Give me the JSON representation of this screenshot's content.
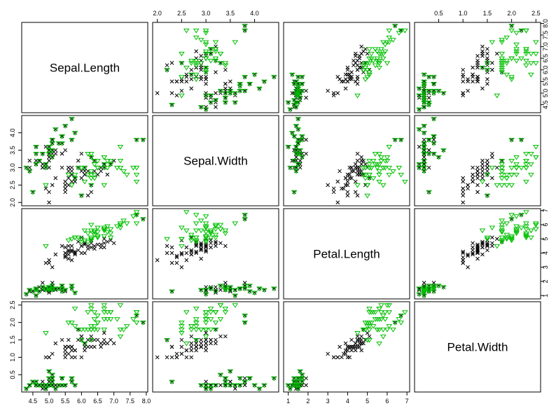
{
  "chart_data": {
    "type": "scatter",
    "title": "",
    "variables": [
      "Sepal.Length",
      "Sepal.Width",
      "Petal.Length",
      "Petal.Width"
    ],
    "ticks": {
      "Sepal.Length": [
        4.5,
        5.0,
        5.5,
        6.0,
        6.5,
        7.0,
        7.5,
        8.0
      ],
      "Sepal.Width": [
        2.0,
        2.5,
        3.0,
        3.5,
        4.0
      ],
      "Petal.Length": [
        1,
        2,
        3,
        4,
        5,
        6,
        7
      ],
      "Petal.Width": [
        0.5,
        1.0,
        1.5,
        2.0,
        2.5
      ]
    },
    "tick_labels": {
      "Sepal.Length": [
        "4.5",
        "5.0",
        "5.5",
        "6.0",
        "6.5",
        "7.0",
        "7.5",
        "8.0"
      ],
      "Sepal.Width": [
        "2.0",
        "2.5",
        "3.0",
        "3.5",
        "4.0"
      ],
      "Petal.Length": [
        "1",
        "2",
        "3",
        "4",
        "5",
        "6",
        "7"
      ],
      "Petal.Width": [
        "0.5",
        "1.0",
        "1.5",
        "2.0",
        "2.5"
      ]
    },
    "ranges": {
      "Sepal.Length": [
        4.3,
        7.9
      ],
      "Sepal.Width": [
        2.0,
        4.4
      ],
      "Petal.Length": [
        1.0,
        6.9
      ],
      "Petal.Width": [
        0.1,
        2.5
      ]
    },
    "series": [
      {
        "marker": "x",
        "color": "#000000",
        "points": [
          [
            5.1,
            3.5,
            1.4,
            0.2
          ],
          [
            4.9,
            3.0,
            1.4,
            0.2
          ],
          [
            4.7,
            3.2,
            1.3,
            0.2
          ],
          [
            4.6,
            3.1,
            1.5,
            0.2
          ],
          [
            5.0,
            3.6,
            1.4,
            0.2
          ],
          [
            5.4,
            3.9,
            1.7,
            0.4
          ],
          [
            4.6,
            3.4,
            1.4,
            0.3
          ],
          [
            5.0,
            3.4,
            1.5,
            0.2
          ],
          [
            4.4,
            2.9,
            1.4,
            0.2
          ],
          [
            4.9,
            3.1,
            1.5,
            0.1
          ],
          [
            5.4,
            3.7,
            1.5,
            0.2
          ],
          [
            4.8,
            3.4,
            1.6,
            0.2
          ],
          [
            4.8,
            3.0,
            1.4,
            0.1
          ],
          [
            4.3,
            3.0,
            1.1,
            0.1
          ],
          [
            5.8,
            4.0,
            1.2,
            0.2
          ],
          [
            5.7,
            4.4,
            1.5,
            0.4
          ],
          [
            5.4,
            3.9,
            1.3,
            0.4
          ],
          [
            5.1,
            3.5,
            1.4,
            0.3
          ],
          [
            5.7,
            3.8,
            1.7,
            0.3
          ],
          [
            5.1,
            3.8,
            1.5,
            0.3
          ],
          [
            5.4,
            3.4,
            1.7,
            0.2
          ],
          [
            5.1,
            3.7,
            1.5,
            0.4
          ],
          [
            4.6,
            3.6,
            1.0,
            0.2
          ],
          [
            5.1,
            3.3,
            1.7,
            0.5
          ],
          [
            4.8,
            3.4,
            1.9,
            0.2
          ],
          [
            5.0,
            3.0,
            1.6,
            0.2
          ],
          [
            5.0,
            3.4,
            1.6,
            0.4
          ],
          [
            5.2,
            3.5,
            1.5,
            0.2
          ],
          [
            5.2,
            3.4,
            1.4,
            0.2
          ],
          [
            4.7,
            3.2,
            1.6,
            0.2
          ],
          [
            4.8,
            3.1,
            1.6,
            0.2
          ],
          [
            5.4,
            3.4,
            1.5,
            0.4
          ],
          [
            5.2,
            4.1,
            1.5,
            0.1
          ],
          [
            5.5,
            4.2,
            1.4,
            0.2
          ],
          [
            4.9,
            3.1,
            1.5,
            0.2
          ],
          [
            5.0,
            3.2,
            1.2,
            0.2
          ],
          [
            5.5,
            3.5,
            1.3,
            0.2
          ],
          [
            4.9,
            3.6,
            1.4,
            0.1
          ],
          [
            4.4,
            3.0,
            1.3,
            0.2
          ],
          [
            5.1,
            3.4,
            1.5,
            0.2
          ],
          [
            5.0,
            3.5,
            1.3,
            0.3
          ],
          [
            4.5,
            2.3,
            1.3,
            0.3
          ],
          [
            4.4,
            3.2,
            1.3,
            0.2
          ],
          [
            5.0,
            3.5,
            1.6,
            0.6
          ],
          [
            5.1,
            3.8,
            1.9,
            0.4
          ],
          [
            4.8,
            3.0,
            1.4,
            0.3
          ],
          [
            5.1,
            3.8,
            1.6,
            0.2
          ],
          [
            4.6,
            3.2,
            1.4,
            0.2
          ],
          [
            5.3,
            3.7,
            1.5,
            0.2
          ],
          [
            5.0,
            3.3,
            1.4,
            0.2
          ],
          [
            7.0,
            3.2,
            4.7,
            1.4
          ],
          [
            6.4,
            3.2,
            4.5,
            1.5
          ],
          [
            6.9,
            3.1,
            4.9,
            1.5
          ],
          [
            5.5,
            2.3,
            4.0,
            1.3
          ],
          [
            6.5,
            2.8,
            4.6,
            1.5
          ],
          [
            5.7,
            2.8,
            4.5,
            1.3
          ],
          [
            6.3,
            3.3,
            4.7,
            1.6
          ],
          [
            4.9,
            2.4,
            3.3,
            1.0
          ],
          [
            6.6,
            2.9,
            4.6,
            1.3
          ],
          [
            5.2,
            2.7,
            3.9,
            1.4
          ],
          [
            5.0,
            2.0,
            3.5,
            1.0
          ],
          [
            5.9,
            3.0,
            4.2,
            1.5
          ],
          [
            6.0,
            2.2,
            4.0,
            1.0
          ],
          [
            6.1,
            2.9,
            4.7,
            1.4
          ],
          [
            5.6,
            2.9,
            3.6,
            1.3
          ],
          [
            6.7,
            3.1,
            4.4,
            1.4
          ],
          [
            5.6,
            3.0,
            4.5,
            1.5
          ],
          [
            5.8,
            2.7,
            4.1,
            1.0
          ],
          [
            6.2,
            2.2,
            4.5,
            1.5
          ],
          [
            5.6,
            2.5,
            3.9,
            1.1
          ],
          [
            5.9,
            3.2,
            4.8,
            1.8
          ],
          [
            6.1,
            2.8,
            4.0,
            1.3
          ],
          [
            6.3,
            2.5,
            4.9,
            1.5
          ],
          [
            6.1,
            2.8,
            4.7,
            1.2
          ],
          [
            6.4,
            2.9,
            4.3,
            1.3
          ],
          [
            6.6,
            3.0,
            4.4,
            1.4
          ],
          [
            6.8,
            2.8,
            4.8,
            1.4
          ],
          [
            6.7,
            3.0,
            5.0,
            1.7
          ],
          [
            6.0,
            2.9,
            4.5,
            1.5
          ],
          [
            5.7,
            2.6,
            3.5,
            1.0
          ],
          [
            5.5,
            2.4,
            3.8,
            1.1
          ],
          [
            5.5,
            2.4,
            3.7,
            1.0
          ],
          [
            5.8,
            2.7,
            3.9,
            1.2
          ],
          [
            6.0,
            2.7,
            5.1,
            1.6
          ],
          [
            5.4,
            3.0,
            4.5,
            1.5
          ],
          [
            6.0,
            3.4,
            4.5,
            1.6
          ],
          [
            6.7,
            3.1,
            4.7,
            1.5
          ],
          [
            6.3,
            2.3,
            4.4,
            1.3
          ],
          [
            5.6,
            3.0,
            4.1,
            1.3
          ],
          [
            5.5,
            2.5,
            4.0,
            1.3
          ],
          [
            5.5,
            2.6,
            4.4,
            1.2
          ],
          [
            6.1,
            3.0,
            4.6,
            1.4
          ],
          [
            5.8,
            2.6,
            4.0,
            1.2
          ],
          [
            5.0,
            2.3,
            3.3,
            1.0
          ],
          [
            5.6,
            2.7,
            4.2,
            1.3
          ],
          [
            5.7,
            3.0,
            4.2,
            1.2
          ],
          [
            5.7,
            2.9,
            4.2,
            1.3
          ],
          [
            6.2,
            2.9,
            4.3,
            1.3
          ],
          [
            5.1,
            2.5,
            3.0,
            1.1
          ],
          [
            5.7,
            2.8,
            4.1,
            1.3
          ],
          [
            7.7,
            3.8,
            6.7,
            2.2
          ],
          [
            7.9,
            3.8,
            6.4,
            2.0
          ]
        ]
      },
      {
        "marker": "triangle-down",
        "color": "#00c000",
        "points": [
          [
            5.1,
            3.5,
            1.4,
            0.2
          ],
          [
            4.9,
            3.0,
            1.4,
            0.2
          ],
          [
            4.7,
            3.2,
            1.3,
            0.2
          ],
          [
            4.6,
            3.1,
            1.5,
            0.2
          ],
          [
            5.0,
            3.6,
            1.4,
            0.2
          ],
          [
            5.4,
            3.9,
            1.7,
            0.4
          ],
          [
            4.6,
            3.4,
            1.4,
            0.3
          ],
          [
            5.0,
            3.4,
            1.5,
            0.2
          ],
          [
            4.4,
            2.9,
            1.4,
            0.2
          ],
          [
            4.9,
            3.1,
            1.5,
            0.1
          ],
          [
            5.4,
            3.7,
            1.5,
            0.2
          ],
          [
            4.8,
            3.4,
            1.6,
            0.2
          ],
          [
            4.3,
            3.0,
            1.1,
            0.1
          ],
          [
            5.8,
            4.0,
            1.2,
            0.2
          ],
          [
            5.7,
            4.4,
            1.5,
            0.4
          ],
          [
            5.4,
            3.9,
            1.3,
            0.4
          ],
          [
            5.7,
            3.8,
            1.7,
            0.3
          ],
          [
            5.1,
            3.8,
            1.5,
            0.3
          ],
          [
            5.1,
            3.7,
            1.5,
            0.4
          ],
          [
            4.6,
            3.6,
            1.0,
            0.2
          ],
          [
            5.1,
            3.3,
            1.7,
            0.5
          ],
          [
            5.0,
            3.4,
            1.6,
            0.4
          ],
          [
            5.2,
            4.1,
            1.5,
            0.1
          ],
          [
            5.5,
            4.2,
            1.4,
            0.2
          ],
          [
            5.0,
            3.5,
            1.6,
            0.6
          ],
          [
            4.5,
            2.3,
            1.3,
            0.3
          ],
          [
            5.3,
            3.7,
            1.5,
            0.2
          ],
          [
            6.3,
            3.3,
            6.0,
            2.5
          ],
          [
            5.8,
            2.7,
            5.1,
            1.9
          ],
          [
            7.1,
            3.0,
            5.9,
            2.1
          ],
          [
            6.3,
            2.9,
            5.6,
            1.8
          ],
          [
            6.5,
            3.0,
            5.8,
            2.2
          ],
          [
            7.6,
            3.0,
            6.6,
            2.1
          ],
          [
            4.9,
            2.5,
            4.5,
            1.7
          ],
          [
            7.3,
            2.9,
            6.3,
            1.8
          ],
          [
            6.7,
            2.5,
            5.8,
            1.8
          ],
          [
            7.2,
            3.6,
            6.1,
            2.5
          ],
          [
            6.5,
            3.2,
            5.1,
            2.0
          ],
          [
            6.4,
            2.7,
            5.3,
            1.9
          ],
          [
            6.8,
            3.0,
            5.5,
            2.1
          ],
          [
            5.7,
            2.5,
            5.0,
            2.0
          ],
          [
            5.8,
            2.8,
            5.1,
            2.4
          ],
          [
            6.4,
            3.2,
            5.3,
            2.3
          ],
          [
            6.5,
            3.0,
            5.5,
            1.8
          ],
          [
            7.7,
            3.8,
            6.7,
            2.2
          ],
          [
            7.7,
            2.6,
            6.9,
            2.3
          ],
          [
            6.0,
            2.2,
            5.0,
            1.5
          ],
          [
            6.9,
            3.2,
            5.7,
            2.3
          ],
          [
            5.6,
            2.8,
            4.9,
            2.0
          ],
          [
            7.7,
            2.8,
            6.7,
            2.0
          ],
          [
            6.3,
            2.7,
            4.9,
            1.8
          ],
          [
            6.7,
            3.3,
            5.7,
            2.1
          ],
          [
            7.2,
            3.2,
            6.0,
            1.8
          ],
          [
            6.2,
            2.8,
            4.8,
            1.8
          ],
          [
            6.1,
            3.0,
            4.9,
            1.8
          ],
          [
            6.4,
            2.8,
            5.6,
            2.1
          ],
          [
            7.2,
            3.0,
            5.8,
            1.6
          ],
          [
            7.4,
            2.8,
            6.1,
            1.9
          ],
          [
            7.9,
            3.8,
            6.4,
            2.0
          ],
          [
            6.3,
            2.8,
            5.1,
            1.5
          ],
          [
            6.1,
            2.6,
            5.6,
            1.4
          ],
          [
            7.7,
            3.0,
            6.1,
            2.3
          ],
          [
            6.3,
            3.4,
            5.6,
            2.4
          ],
          [
            6.4,
            3.1,
            5.5,
            1.8
          ],
          [
            6.0,
            3.0,
            4.8,
            1.8
          ],
          [
            6.9,
            3.1,
            5.4,
            2.1
          ],
          [
            6.7,
            3.1,
            5.6,
            2.4
          ],
          [
            6.9,
            3.1,
            5.1,
            2.3
          ],
          [
            6.8,
            3.2,
            5.9,
            2.3
          ],
          [
            6.7,
            3.3,
            5.7,
            2.5
          ],
          [
            6.7,
            3.0,
            5.2,
            2.3
          ],
          [
            6.3,
            2.5,
            5.0,
            1.9
          ],
          [
            6.5,
            3.0,
            5.2,
            2.0
          ],
          [
            6.2,
            3.4,
            5.4,
            2.3
          ],
          [
            5.9,
            3.0,
            5.1,
            1.8
          ]
        ]
      }
    ]
  }
}
